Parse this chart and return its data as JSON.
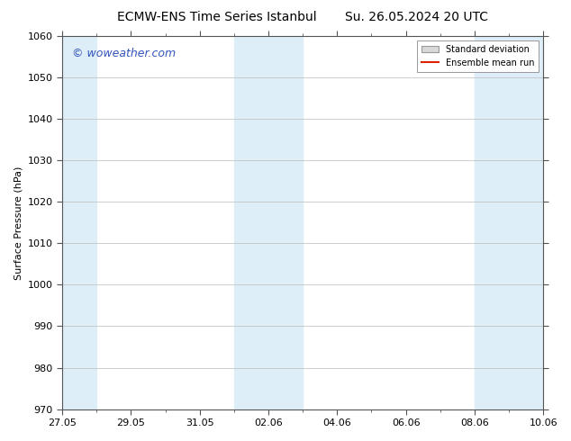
{
  "title_left": "ECMW-ENS Time Series Istanbul",
  "title_right": "Su. 26.05.2024 20 UTC",
  "ylabel": "Surface Pressure (hPa)",
  "xlabel": "",
  "ylim": [
    970,
    1060
  ],
  "yticks": [
    970,
    980,
    990,
    1000,
    1010,
    1020,
    1030,
    1040,
    1050,
    1060
  ],
  "xtick_labels": [
    "27.05",
    "29.05",
    "31.05",
    "02.06",
    "04.06",
    "06.06",
    "08.06",
    "10.06"
  ],
  "xtick_positions": [
    0,
    2,
    4,
    6,
    8,
    10,
    12,
    14
  ],
  "xlim": [
    0,
    14
  ],
  "shade_bands": [
    {
      "x_start": 0,
      "x_end": 1
    },
    {
      "x_start": 5,
      "x_end": 7
    },
    {
      "x_start": 12,
      "x_end": 14
    }
  ],
  "shade_color": "#ddeef8",
  "watermark_text": "© woweather.com",
  "watermark_color": "#3355bb",
  "legend_std_label": "Standard deviation",
  "legend_mean_label": "Ensemble mean run",
  "legend_std_facecolor": "#d8d8d8",
  "legend_std_edgecolor": "#999999",
  "legend_mean_color": "#dd2200",
  "bg_color": "#ffffff",
  "axes_bg_color": "#ffffff",
  "grid_color": "#bbbbbb",
  "title_fontsize": 10,
  "label_fontsize": 8,
  "tick_fontsize": 8,
  "watermark_fontsize": 9
}
